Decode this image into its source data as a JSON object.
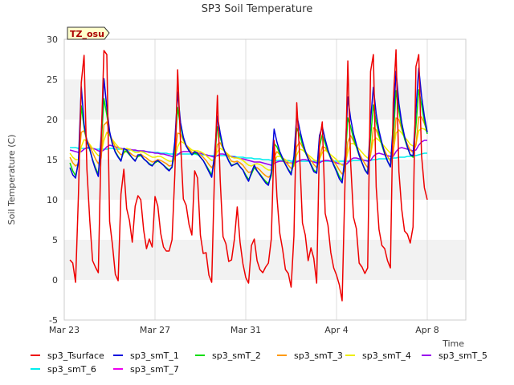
{
  "chart_data": {
    "type": "line",
    "title": "SP3 Soil Temperature",
    "xlabel": "Time",
    "ylabel": "Soil Temperature (C)",
    "badge": "TZ_osu",
    "xlim": [
      0,
      17.7
    ],
    "ylim": [
      -5,
      30
    ],
    "yticks": [
      -5,
      0,
      5,
      10,
      15,
      20,
      25,
      30
    ],
    "xticks": [
      {
        "day": 0,
        "label": "Mar 23"
      },
      {
        "day": 4,
        "label": "Mar 27"
      },
      {
        "day": 8,
        "label": "Mar 31"
      },
      {
        "day": 12,
        "label": "Apr 4"
      },
      {
        "day": 16,
        "label": "Apr 8"
      }
    ],
    "x_start_day": 0.25,
    "x_step_day": 0.125,
    "series": [
      {
        "name": "sp3_Tsurface",
        "color": "#ee0000",
        "values": [
          2.5,
          2.1,
          -0.3,
          10.7,
          24.6,
          28.0,
          13.8,
          7.4,
          2.4,
          1.6,
          0.9,
          16.8,
          28.6,
          28.1,
          7.3,
          4.4,
          0.7,
          -0.1,
          10.7,
          13.8,
          8.9,
          7.4,
          4.7,
          9.2,
          10.5,
          10.0,
          6.2,
          3.9,
          5.1,
          4.1,
          10.4,
          9.2,
          5.8,
          4.1,
          3.6,
          3.6,
          5.0,
          13.2,
          26.2,
          17.1,
          10.1,
          9.3,
          6.9,
          5.6,
          13.6,
          12.7,
          5.6,
          3.3,
          3.4,
          0.6,
          -0.3,
          13.3,
          23.0,
          12.4,
          5.4,
          4.5,
          2.3,
          2.5,
          5.1,
          9.1,
          4.7,
          2.0,
          0.3,
          -0.4,
          4.3,
          5.1,
          2.4,
          1.3,
          0.9,
          1.6,
          2.1,
          5.1,
          17.4,
          10.4,
          5.8,
          3.8,
          1.3,
          0.8,
          -0.9,
          5.5,
          22.1,
          15.5,
          7.1,
          5.6,
          2.4,
          4.0,
          2.7,
          -0.4,
          17.3,
          19.7,
          8.3,
          6.8,
          3.4,
          1.5,
          0.6,
          -0.6,
          -2.6,
          12.2,
          27.3,
          14.6,
          7.8,
          6.4,
          2.1,
          1.6,
          0.8,
          1.5,
          26.0,
          28.1,
          11.6,
          6.3,
          4.3,
          3.9,
          2.4,
          1.5,
          22.1,
          28.7,
          13.5,
          8.8,
          6.1,
          5.7,
          4.6,
          6.6,
          26.6,
          28.1,
          15.5,
          11.5,
          10.0
        ]
      },
      {
        "name": "sp3_smT_1",
        "color": "#0000dd",
        "values": [
          14.0,
          13.1,
          12.7,
          14.8,
          24.1,
          19.4,
          17.3,
          16.3,
          14.9,
          13.8,
          12.9,
          17.9,
          25.1,
          21.5,
          18.5,
          16.9,
          15.9,
          15.3,
          14.8,
          16.4,
          16.2,
          15.7,
          15.2,
          14.8,
          15.6,
          15.6,
          15.1,
          14.8,
          14.4,
          14.2,
          14.7,
          14.9,
          14.6,
          14.3,
          13.9,
          13.6,
          14.1,
          17.3,
          23.4,
          19.6,
          17.8,
          16.7,
          16.1,
          15.6,
          16.0,
          15.8,
          15.3,
          14.9,
          14.2,
          13.5,
          12.8,
          15.6,
          20.4,
          18.3,
          16.6,
          15.6,
          14.8,
          14.2,
          14.4,
          14.6,
          14.1,
          13.7,
          12.9,
          12.3,
          13.4,
          14.3,
          13.6,
          13.1,
          12.6,
          12.1,
          11.8,
          13.4,
          18.8,
          17.2,
          16.0,
          15.2,
          14.4,
          13.7,
          13.1,
          15.4,
          20.6,
          18.8,
          17.3,
          16.1,
          15.1,
          14.3,
          13.5,
          13.3,
          18.0,
          19.1,
          17.5,
          16.2,
          15.2,
          14.3,
          13.5,
          12.6,
          12.1,
          15.5,
          22.8,
          20.1,
          18.2,
          16.9,
          15.6,
          14.6,
          13.7,
          13.2,
          19.9,
          24.0,
          20.7,
          18.6,
          17.1,
          15.8,
          14.8,
          14.1,
          19.5,
          26.0,
          22.0,
          19.6,
          17.9,
          16.6,
          15.6,
          15.5,
          21.2,
          26.4,
          22.9,
          20.4,
          18.4
        ]
      },
      {
        "name": "sp3_smT_2",
        "color": "#00dd00",
        "values": [
          14.6,
          13.6,
          13.0,
          14.5,
          21.7,
          19.0,
          17.2,
          16.2,
          15.0,
          14.0,
          13.2,
          16.8,
          22.6,
          20.6,
          18.3,
          16.9,
          16.0,
          15.4,
          14.9,
          16.0,
          16.0,
          15.6,
          15.2,
          14.9,
          15.4,
          15.5,
          15.1,
          14.8,
          14.5,
          14.3,
          14.6,
          14.8,
          14.6,
          14.3,
          14.0,
          13.7,
          14.0,
          16.3,
          21.5,
          19.1,
          17.6,
          16.7,
          16.1,
          15.6,
          15.8,
          15.7,
          15.3,
          14.9,
          14.3,
          13.7,
          13.1,
          15.0,
          19.1,
          17.8,
          16.5,
          15.6,
          14.9,
          14.3,
          14.4,
          14.5,
          14.1,
          13.7,
          13.1,
          12.5,
          13.2,
          14.0,
          13.6,
          13.2,
          12.7,
          12.3,
          12.0,
          13.0,
          17.0,
          16.6,
          15.7,
          15.0,
          14.4,
          13.8,
          13.3,
          14.6,
          18.9,
          18.1,
          16.9,
          15.9,
          15.1,
          14.4,
          13.7,
          13.4,
          16.6,
          18.1,
          17.0,
          16.0,
          15.1,
          14.4,
          13.7,
          12.9,
          12.4,
          14.5,
          20.2,
          19.1,
          17.6,
          16.6,
          15.5,
          14.6,
          13.8,
          13.3,
          17.7,
          21.8,
          19.7,
          18.1,
          16.8,
          15.7,
          14.8,
          14.1,
          17.7,
          23.6,
          21.1,
          19.1,
          17.6,
          16.5,
          15.6,
          15.3,
          19.2,
          23.7,
          21.8,
          19.8,
          18.2
        ]
      },
      {
        "name": "sp3_smT_3",
        "color": "#ff9900",
        "values": [
          15.3,
          14.6,
          14.2,
          14.5,
          18.4,
          18.6,
          17.5,
          16.7,
          15.9,
          15.1,
          14.5,
          15.2,
          19.3,
          19.7,
          18.3,
          17.3,
          16.6,
          16.0,
          15.6,
          15.8,
          16.2,
          15.9,
          15.6,
          15.4,
          15.5,
          15.7,
          15.4,
          15.2,
          14.9,
          14.7,
          14.8,
          15.0,
          14.9,
          14.7,
          14.5,
          14.2,
          14.3,
          15.3,
          18.3,
          18.2,
          17.4,
          16.8,
          16.3,
          15.9,
          15.9,
          15.9,
          15.6,
          15.3,
          14.9,
          14.4,
          14.0,
          14.6,
          16.9,
          17.1,
          16.4,
          15.8,
          15.3,
          14.8,
          14.7,
          14.8,
          14.6,
          14.3,
          13.8,
          13.4,
          13.5,
          14.0,
          14.0,
          13.7,
          13.3,
          13.0,
          12.8,
          13.1,
          15.3,
          16.0,
          15.6,
          15.2,
          14.7,
          14.3,
          13.9,
          14.2,
          16.6,
          17.2,
          16.6,
          16.0,
          15.4,
          14.9,
          14.4,
          14.0,
          15.1,
          16.6,
          16.5,
          15.9,
          15.3,
          14.8,
          14.3,
          13.7,
          13.2,
          13.7,
          17.2,
          18.0,
          17.3,
          16.6,
          15.8,
          15.1,
          14.5,
          14.0,
          15.6,
          19.0,
          18.7,
          17.8,
          16.9,
          16.1,
          15.4,
          14.8,
          15.6,
          20.2,
          20.0,
          18.8,
          17.7,
          16.9,
          16.2,
          15.9,
          16.8,
          20.3,
          20.3,
          19.5,
          18.5
        ]
      },
      {
        "name": "sp3_smT_4",
        "color": "#eeee00",
        "values": [
          15.8,
          15.3,
          15.0,
          15.0,
          16.6,
          17.5,
          17.3,
          16.9,
          16.4,
          15.9,
          15.5,
          15.6,
          17.4,
          18.4,
          18.0,
          17.5,
          17.0,
          16.6,
          16.3,
          16.2,
          16.4,
          16.3,
          16.1,
          15.9,
          15.9,
          16.0,
          15.9,
          15.7,
          15.5,
          15.3,
          15.3,
          15.4,
          15.4,
          15.2,
          15.0,
          14.8,
          14.8,
          15.2,
          16.6,
          17.3,
          17.1,
          16.8,
          16.5,
          16.2,
          16.1,
          16.1,
          16.0,
          15.8,
          15.5,
          15.2,
          14.9,
          15.0,
          16.0,
          16.4,
          16.2,
          15.9,
          15.6,
          15.3,
          15.2,
          15.2,
          15.1,
          14.9,
          14.6,
          14.3,
          14.2,
          14.4,
          14.5,
          14.4,
          14.2,
          13.9,
          13.7,
          13.7,
          14.7,
          15.4,
          15.4,
          15.2,
          15.0,
          14.7,
          14.5,
          14.5,
          15.6,
          16.3,
          16.2,
          15.9,
          15.6,
          15.3,
          15.0,
          14.8,
          15.0,
          15.9,
          16.2,
          15.9,
          15.6,
          15.3,
          15.0,
          14.6,
          14.3,
          14.3,
          15.9,
          17.0,
          17.0,
          16.7,
          16.3,
          15.9,
          15.5,
          15.2,
          15.6,
          17.4,
          17.7,
          17.4,
          17.0,
          16.6,
          16.2,
          15.8,
          16.0,
          18.3,
          18.7,
          18.3,
          17.8,
          17.4,
          16.9,
          16.7,
          16.9,
          18.6,
          18.9,
          18.8,
          18.5
        ]
      },
      {
        "name": "sp3_smT_5",
        "color": "#9900ee",
        "values": [
          16.2,
          16.1,
          16.0,
          15.9,
          16.0,
          16.3,
          16.5,
          16.5,
          16.4,
          16.3,
          16.1,
          16.0,
          16.2,
          16.6,
          16.8,
          16.7,
          16.6,
          16.5,
          16.4,
          16.3,
          16.3,
          16.3,
          16.2,
          16.2,
          16.1,
          16.1,
          16.1,
          16.0,
          15.9,
          15.9,
          15.8,
          15.8,
          15.7,
          15.7,
          15.6,
          15.5,
          15.4,
          15.4,
          15.6,
          15.9,
          16.0,
          16.0,
          16.0,
          15.9,
          15.8,
          15.8,
          15.8,
          15.7,
          15.6,
          15.5,
          15.4,
          15.3,
          15.5,
          15.7,
          15.7,
          15.6,
          15.5,
          15.4,
          15.3,
          15.2,
          15.1,
          15.1,
          15.0,
          14.9,
          14.8,
          14.7,
          14.7,
          14.7,
          14.6,
          14.5,
          14.4,
          14.3,
          14.5,
          14.7,
          14.8,
          14.8,
          14.7,
          14.6,
          14.6,
          14.5,
          14.7,
          14.9,
          15.0,
          15.0,
          14.9,
          14.8,
          14.7,
          14.6,
          14.6,
          14.8,
          14.9,
          14.9,
          14.8,
          14.7,
          14.6,
          14.5,
          14.4,
          14.3,
          14.6,
          15.0,
          15.2,
          15.2,
          15.1,
          15.0,
          14.9,
          14.8,
          14.9,
          15.4,
          15.7,
          15.8,
          15.7,
          15.6,
          15.5,
          15.4,
          15.4,
          16.0,
          16.4,
          16.5,
          16.4,
          16.3,
          16.2,
          16.1,
          16.2,
          16.8,
          17.2,
          17.4,
          17.4
        ]
      },
      {
        "name": "sp3_smT_6",
        "color": "#00eeee",
        "values": [
          16.5,
          16.5,
          16.5,
          16.4,
          16.4,
          16.4,
          16.4,
          16.4,
          16.4,
          16.3,
          16.3,
          16.3,
          16.3,
          16.3,
          16.4,
          16.4,
          16.3,
          16.3,
          16.3,
          16.2,
          16.2,
          16.2,
          16.2,
          16.1,
          16.1,
          16.1,
          16.0,
          16.0,
          16.0,
          15.9,
          15.9,
          15.9,
          15.8,
          15.8,
          15.8,
          15.7,
          15.7,
          15.7,
          15.7,
          15.7,
          15.7,
          15.7,
          15.7,
          15.7,
          15.7,
          15.6,
          15.6,
          15.6,
          15.6,
          15.5,
          15.5,
          15.5,
          15.5,
          15.5,
          15.5,
          15.5,
          15.4,
          15.4,
          15.4,
          15.3,
          15.3,
          15.3,
          15.2,
          15.2,
          15.2,
          15.1,
          15.1,
          15.1,
          15.0,
          15.0,
          15.0,
          14.9,
          14.9,
          14.9,
          14.9,
          14.9,
          14.9,
          14.9,
          14.8,
          14.8,
          14.8,
          14.8,
          14.8,
          14.8,
          14.8,
          14.8,
          14.8,
          14.8,
          14.8,
          14.8,
          14.8,
          14.8,
          14.8,
          14.8,
          14.8,
          14.8,
          14.8,
          14.8,
          14.8,
          14.8,
          14.9,
          14.9,
          14.9,
          14.9,
          14.9,
          14.9,
          14.9,
          15.0,
          15.0,
          15.1,
          15.1,
          15.1,
          15.1,
          15.1,
          15.2,
          15.2,
          15.3,
          15.3,
          15.3,
          15.4,
          15.4,
          15.5,
          15.5,
          15.6,
          15.7,
          15.8,
          15.8
        ]
      },
      {
        "name": "sp3_smT_7",
        "color": "#ee00ee",
        "values": [
          16.4,
          16.4,
          16.4,
          16.4,
          16.4,
          16.4,
          16.4,
          16.4,
          16.4,
          16.4,
          16.4,
          16.4,
          16.4,
          16.4,
          16.4,
          16.4,
          16.4,
          16.4,
          16.4,
          16.4,
          16.4,
          16.4,
          16.4,
          16.4,
          16.4,
          16.4,
          16.4,
          16.4,
          16.4,
          16.4,
          16.4,
          16.4,
          16.4,
          16.4,
          16.4,
          16.4,
          16.4,
          16.4,
          16.4,
          16.4,
          16.4,
          16.4,
          16.4,
          16.4,
          16.4,
          16.4,
          16.4,
          16.4,
          16.4,
          16.4,
          16.4,
          16.4,
          16.4,
          16.4,
          16.4,
          16.4,
          16.3,
          16.3,
          16.3,
          16.3,
          16.2,
          16.2,
          16.2,
          16.2,
          16.1,
          16.1,
          16.1,
          16.0,
          16.0,
          16.0,
          15.9,
          15.9,
          15.9,
          15.9,
          15.9,
          15.8,
          15.8,
          15.8,
          15.8,
          15.8,
          15.8,
          15.8,
          15.8,
          15.8,
          15.8,
          15.8,
          15.8,
          15.8,
          15.8,
          15.8,
          15.8,
          15.8,
          15.8,
          15.8,
          15.8,
          15.8,
          15.8,
          15.8,
          15.8,
          15.8,
          15.8,
          15.8,
          15.8,
          15.8,
          15.8,
          15.8,
          15.8,
          15.8,
          15.9,
          15.9,
          15.9,
          15.9,
          15.9,
          15.9,
          16.0,
          16.0,
          16.0,
          16.1,
          16.1,
          16.1,
          16.1,
          16.2,
          16.2,
          16.2,
          16.3,
          16.3,
          16.3,
          16.3,
          16.4
        ]
      }
    ]
  }
}
